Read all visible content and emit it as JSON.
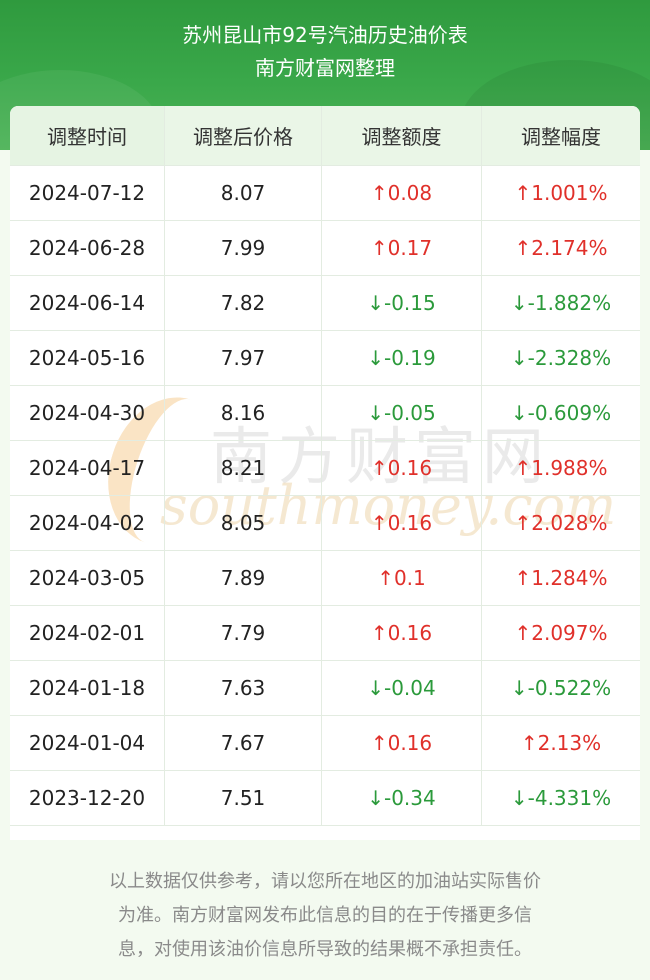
{
  "header": {
    "title_line1": "苏州昆山市92号汽油历史油价表",
    "title_line2": "南方财富网整理"
  },
  "table": {
    "columns": [
      "调整时间",
      "调整后价格",
      "调整额度",
      "调整幅度"
    ],
    "rows": [
      {
        "date": "2024-07-12",
        "price": "8.07",
        "amount": "↑0.08",
        "percent": "↑1.001%",
        "dir": "up"
      },
      {
        "date": "2024-06-28",
        "price": "7.99",
        "amount": "↑0.17",
        "percent": "↑2.174%",
        "dir": "up"
      },
      {
        "date": "2024-06-14",
        "price": "7.82",
        "amount": "↓-0.15",
        "percent": "↓-1.882%",
        "dir": "down"
      },
      {
        "date": "2024-05-16",
        "price": "7.97",
        "amount": "↓-0.19",
        "percent": "↓-2.328%",
        "dir": "down"
      },
      {
        "date": "2024-04-30",
        "price": "8.16",
        "amount": "↓-0.05",
        "percent": "↓-0.609%",
        "dir": "down"
      },
      {
        "date": "2024-04-17",
        "price": "8.21",
        "amount": "↑0.16",
        "percent": "↑1.988%",
        "dir": "up"
      },
      {
        "date": "2024-04-02",
        "price": "8.05",
        "amount": "↑0.16",
        "percent": "↑2.028%",
        "dir": "up"
      },
      {
        "date": "2024-03-05",
        "price": "7.89",
        "amount": "↑0.1",
        "percent": "↑1.284%",
        "dir": "up"
      },
      {
        "date": "2024-02-01",
        "price": "7.79",
        "amount": "↑0.16",
        "percent": "↑2.097%",
        "dir": "up"
      },
      {
        "date": "2024-01-18",
        "price": "7.63",
        "amount": "↓-0.04",
        "percent": "↓-0.522%",
        "dir": "down"
      },
      {
        "date": "2024-01-04",
        "price": "7.67",
        "amount": "↑0.16",
        "percent": "↑2.13%",
        "dir": "up"
      },
      {
        "date": "2023-12-20",
        "price": "7.51",
        "amount": "↓-0.34",
        "percent": "↓-4.331%",
        "dir": "down"
      }
    ]
  },
  "watermark": {
    "cn": "南方财富网",
    "en": "southmoney.com"
  },
  "footer": {
    "line1": "以上数据仅供参考，请以您所在地区的加油站实际售价",
    "line2": "为准。南方财富网发布此信息的目的在于传播更多信",
    "line3": "息，对使用该油价信息所导致的结果概不承担责任。"
  },
  "colors": {
    "up": "#e0302a",
    "down": "#2b9a3b",
    "header_green": "#3aa84a"
  }
}
